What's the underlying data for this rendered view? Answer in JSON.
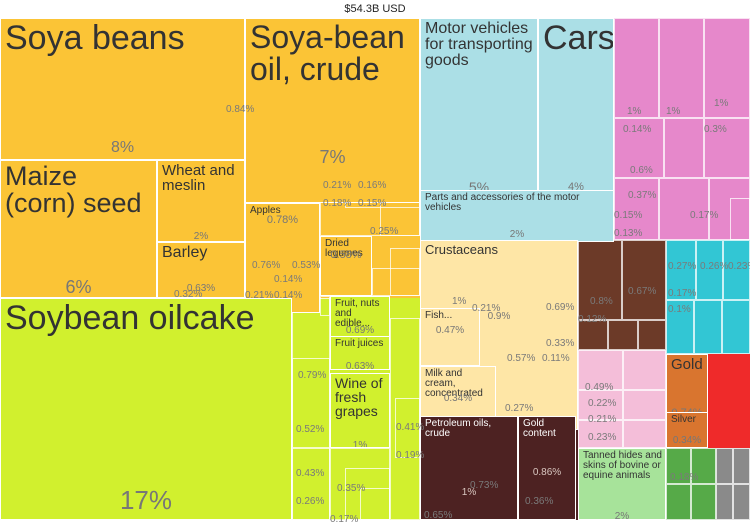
{
  "chart_data": {
    "type": "treemap",
    "title": "$54.3B USD",
    "colors": {
      "orange": "#fbc436",
      "lime": "#d1f02e",
      "cyan": "#abdfe6",
      "magenta": "#e688cb",
      "cream": "#fee6a6",
      "darkbrown": "#4d2222",
      "brown": "#6c3a28",
      "pink": "#f4bed9",
      "teal": "#32c6d4",
      "lightgreen": "#a7e39a",
      "gold": "#d9752f",
      "red": "#ef2a2a",
      "grey": "#999999",
      "green": "#56aa48",
      "grayish": "#8a8a8a"
    },
    "tiles": [
      {
        "name": "Soya beans",
        "pct": "8%",
        "color": "orange"
      },
      {
        "name": "Soya-bean oil, crude",
        "pct": "7%",
        "color": "orange"
      },
      {
        "name": "Maize (corn) seed",
        "pct": "6%",
        "color": "orange"
      },
      {
        "name": "Wheat and meslin",
        "pct": "2%",
        "color": "orange"
      },
      {
        "name": "Barley",
        "pct": "0.63%",
        "color": "orange"
      },
      {
        "name": "Apples",
        "pct": "0.78%",
        "color": "orange"
      },
      {
        "name": "Dried legumes",
        "pct": "0.58%",
        "color": "orange"
      },
      {
        "name": "Soybean oilcake",
        "pct": "17%",
        "color": "lime"
      },
      {
        "name": "Fruit, nuts and edible...",
        "pct": "0.69%",
        "color": "lime"
      },
      {
        "name": "Fruit juices",
        "pct": "0.63%",
        "color": "lime"
      },
      {
        "name": "Wine of fresh grapes",
        "pct": "1%",
        "color": "lime"
      },
      {
        "name": "Motor vehicles for transporting goods",
        "pct": "5%",
        "color": "cyan"
      },
      {
        "name": "Cars",
        "pct": "4%",
        "color": "cyan"
      },
      {
        "name": "Parts and accessories of the motor vehicles",
        "pct": "2%",
        "color": "cyan"
      },
      {
        "name": "Crustaceans",
        "pct": "0.9%",
        "color": "cream"
      },
      {
        "name": "Fish...",
        "pct": "0.47%",
        "color": "cream"
      },
      {
        "name": "Milk and cream, concentrated",
        "pct": "0.34%",
        "color": "cream"
      },
      {
        "name": "Petroleum oils, crude",
        "pct": "1%",
        "color": "darkbrown"
      },
      {
        "name": "Gold content",
        "pct": "0.86%",
        "color": "darkbrown"
      },
      {
        "name": "Tanned hides and skins of bovine or equine animals",
        "pct": "2%",
        "color": "lightgreen"
      },
      {
        "name": "Gold",
        "pct": "0.74%",
        "color": "gold"
      },
      {
        "name": "Silver",
        "pct": "0.34%",
        "color": "gold"
      }
    ],
    "small_values": [
      "0.84%",
      "0.21%",
      "0.16%",
      "0.18%",
      "0.15%",
      "0.25%",
      "0.76%",
      "0.53%",
      "0.14%",
      "0.21%",
      "0.14%",
      "0.32%",
      "0.79%",
      "0.52%",
      "0.43%",
      "0.26%",
      "0.17%",
      "0.35%",
      "0.41%",
      "0.19%",
      "0.21%",
      "0.65%",
      "0.73%",
      "0.36%",
      "1%",
      "0.57%",
      "0.11%",
      "0.33%",
      "0.69%",
      "0.27%",
      "0.8%",
      "0.67%",
      "0.12%",
      "0.49%",
      "0.22%",
      "0.21%",
      "0.23%",
      "1%",
      "1%",
      "1%",
      "0.14%",
      "0.3%",
      "0.6%",
      "0.37%",
      "0.15%",
      "0.13%",
      "0.17%",
      "0.27%",
      "0.26%",
      "0.23%",
      "0.17%",
      "0.1%",
      "0.18%"
    ]
  }
}
